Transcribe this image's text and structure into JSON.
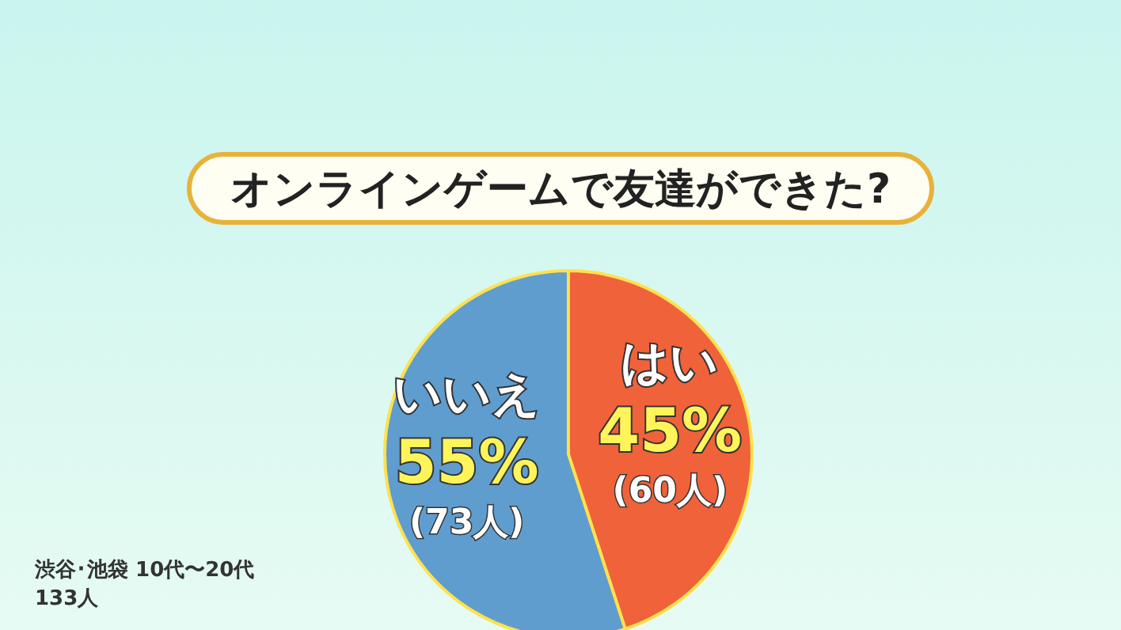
{
  "chart_data": {
    "type": "pie",
    "title": "オンラインゲームで友達ができた?",
    "categories": [
      "はい",
      "いいえ"
    ],
    "values": [
      45,
      55
    ],
    "value_labels": [
      "45%\n(60人)",
      "55%\n(73人)"
    ],
    "colors": [
      "#f0623a",
      "#5f9dcf"
    ],
    "annotations": [
      "渋谷･池袋 10代〜20代",
      "133人"
    ]
  }
}
